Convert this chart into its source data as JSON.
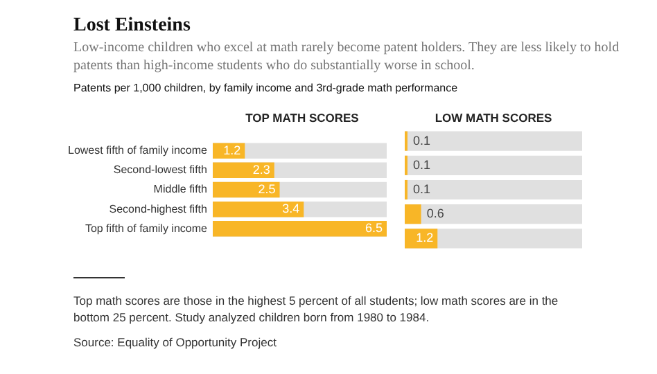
{
  "chart_data": [
    {
      "type": "other",
      "title": "Lost Einsteins",
      "subtitle": "Low-income children who excel at math rarely become patent holders. They are less likely to hold patents than high-income students who do substantially worse in school.",
      "annotations": [
        "Patents per 1,000 children, by family income and 3rd-grade math performance"
      ]
    },
    {
      "type": "bar",
      "orientation": "horizontal",
      "title": "TOP MATH SCORES",
      "categories": [
        "Lowest fifth of family income",
        "Second-lowest fifth",
        "Middle fifth",
        "Second-highest fifth",
        "Top fifth of family income"
      ],
      "values": [
        1.2,
        2.3,
        2.5,
        3.4,
        6.5
      ],
      "color": "#f8b627",
      "data_labels": true,
      "tick_labels": "y"
    },
    {
      "type": "bar",
      "orientation": "horizontal",
      "title": "LOW MATH SCORES",
      "categories": [
        null,
        null,
        null,
        null,
        null
      ],
      "values": [
        0.1,
        0.1,
        0.1,
        0.6,
        1.2
      ],
      "color": "#f8b627",
      "data_labels": true,
      "tick_labels": false
    },
    {
      "type": "other",
      "annotations": [
        "Top math scores are those in the highest 5 percent of all students; low math scores are in the bottom 25 percent. Study analyzed children born from 1980 to 1984.",
        "Source: Equality of Opportunity Project"
      ]
    }
  ]
}
